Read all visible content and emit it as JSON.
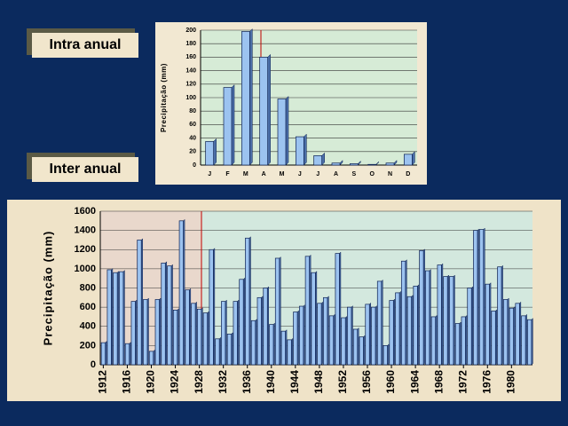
{
  "slide": {
    "labels": [
      "Intra anual",
      "Inter anual"
    ]
  },
  "chart_data": [
    {
      "type": "bar",
      "y_label": "Precipitação (mm)",
      "categories": [
        "J",
        "F",
        "M",
        "A",
        "M",
        "J",
        "J",
        "A",
        "S",
        "O",
        "N",
        "D"
      ],
      "values": [
        35,
        115,
        198,
        160,
        98,
        42,
        14,
        3,
        2,
        1,
        3,
        16
      ],
      "color": "#9cc3f0",
      "ylim": [
        0,
        200
      ],
      "yticks": [
        0,
        20,
        40,
        60,
        80,
        100,
        120,
        140,
        160,
        180,
        200
      ],
      "grid": true
    },
    {
      "type": "bar",
      "y_label": "Precipitação (mm)",
      "x": [
        1912,
        1913,
        1914,
        1915,
        1916,
        1917,
        1918,
        1919,
        1920,
        1921,
        1922,
        1923,
        1924,
        1925,
        1926,
        1927,
        1928,
        1929,
        1930,
        1931,
        1932,
        1933,
        1934,
        1935,
        1936,
        1937,
        1938,
        1939,
        1940,
        1941,
        1942,
        1943,
        1944,
        1945,
        1946,
        1947,
        1948,
        1949,
        1950,
        1951,
        1952,
        1953,
        1954,
        1955,
        1956,
        1957,
        1958,
        1959,
        1960,
        1961,
        1962,
        1963,
        1964,
        1965,
        1966,
        1967,
        1968,
        1969,
        1970,
        1971,
        1972,
        1973,
        1974,
        1975,
        1976,
        1977,
        1978,
        1979,
        1980,
        1981,
        1982,
        1983
      ],
      "values": [
        230,
        990,
        960,
        970,
        220,
        660,
        1300,
        680,
        140,
        680,
        1060,
        1030,
        570,
        1500,
        780,
        640,
        580,
        540,
        1200,
        270,
        660,
        320,
        660,
        890,
        1320,
        460,
        700,
        800,
        420,
        1110,
        350,
        260,
        550,
        610,
        1130,
        960,
        640,
        700,
        510,
        1160,
        490,
        600,
        370,
        290,
        630,
        600,
        870,
        200,
        670,
        750,
        1080,
        710,
        820,
        1190,
        980,
        500,
        1040,
        920,
        920,
        430,
        500,
        800,
        1400,
        1410,
        840,
        560,
        1020,
        680,
        590,
        640,
        510,
        470
      ],
      "color": "#9cc3f0",
      "xlim": [
        1911.5,
        1983.5
      ],
      "xticks": [
        1912,
        1916,
        1920,
        1924,
        1928,
        1932,
        1936,
        1940,
        1944,
        1948,
        1952,
        1956,
        1960,
        1964,
        1968,
        1972,
        1976,
        1980
      ],
      "ylim": [
        0,
        1600
      ],
      "yticks": [
        0,
        200,
        400,
        600,
        800,
        1000,
        1200,
        1400,
        1600
      ],
      "grid": true
    }
  ]
}
